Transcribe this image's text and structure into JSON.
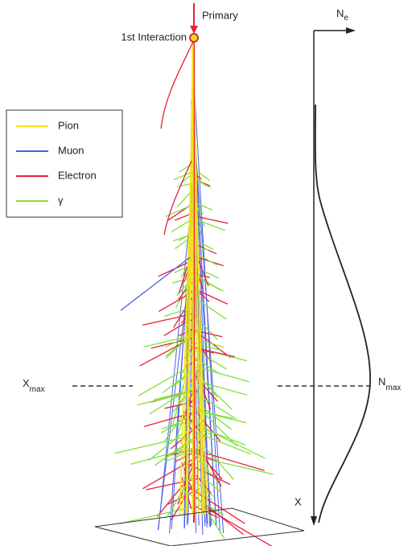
{
  "diagram": {
    "primary_label": "Primary",
    "interaction_label": "1st Interaction",
    "legend": [
      {
        "name": "Pion",
        "color": "#f2e21a"
      },
      {
        "name": "Muon",
        "color": "#4a5ee8"
      },
      {
        "name": "Electron",
        "color": "#e8203a"
      },
      {
        "name": "γ",
        "color": "#7ee23a"
      }
    ],
    "profile_axis": {
      "text": "N",
      "sub": "e"
    },
    "depth_axis": "X",
    "xmax_label": {
      "text": "X",
      "sub": "max"
    },
    "nmax_label": {
      "text": "N",
      "sub": "max"
    }
  }
}
